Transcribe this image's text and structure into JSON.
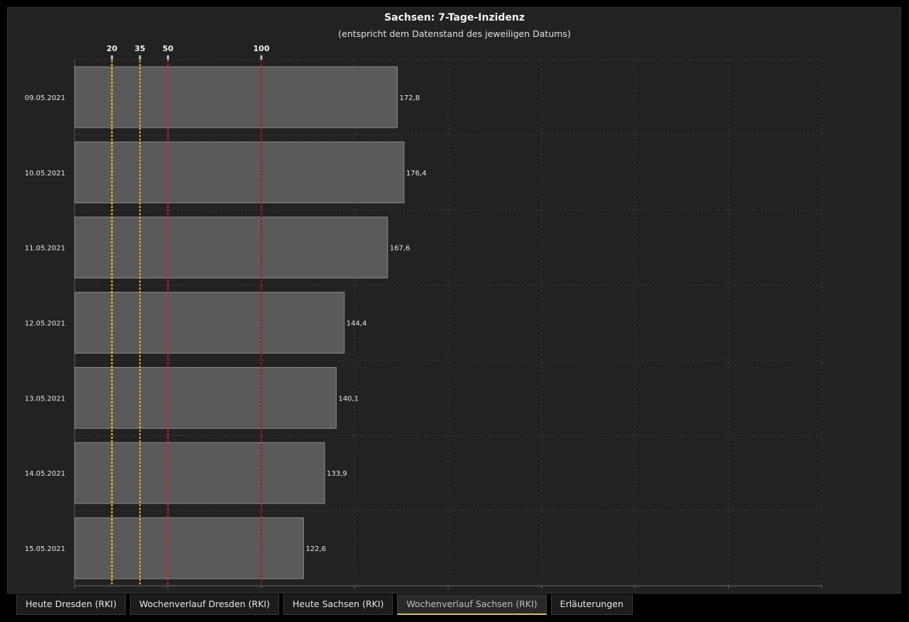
{
  "chart_data": {
    "type": "bar",
    "orientation": "horizontal",
    "title": "Sachsen: 7-Tage-Inzidenz",
    "subtitle": "(entspricht dem Datenstand des jeweiligen Datums)",
    "categories": [
      "09.05.2021",
      "10.05.2021",
      "11.05.2021",
      "12.05.2021",
      "13.05.2021",
      "14.05.2021",
      "15.05.2021"
    ],
    "values": [
      172.8,
      176.4,
      167.6,
      144.4,
      140.1,
      133.9,
      122.6
    ],
    "value_labels": [
      "172,8",
      "176,4",
      "167,6",
      "144,4",
      "140,1",
      "133,9",
      "122,6"
    ],
    "xlim": [
      0,
      400
    ],
    "grid": true,
    "bar_color": "#5a5a5a",
    "threshold_lines": [
      {
        "value": 20,
        "label": "20",
        "color": "#f2d21b"
      },
      {
        "value": 35,
        "label": "35",
        "color": "#f0a81c"
      },
      {
        "value": 50,
        "label": "50",
        "color": "#e02020"
      },
      {
        "value": 100,
        "label": "100",
        "color": "#a01c14"
      }
    ]
  },
  "tabs": [
    {
      "label": "Heute Dresden (RKI)",
      "active": false
    },
    {
      "label": "Wochenverlauf Dresden (RKI)",
      "active": false
    },
    {
      "label": "Heute Sachsen (RKI)",
      "active": false
    },
    {
      "label": "Wochenverlauf Sachsen (RKI)",
      "active": true
    },
    {
      "label": "Erläuterungen",
      "active": false
    }
  ],
  "colors": {
    "accent": "#d8c43a",
    "background": "#222222"
  }
}
